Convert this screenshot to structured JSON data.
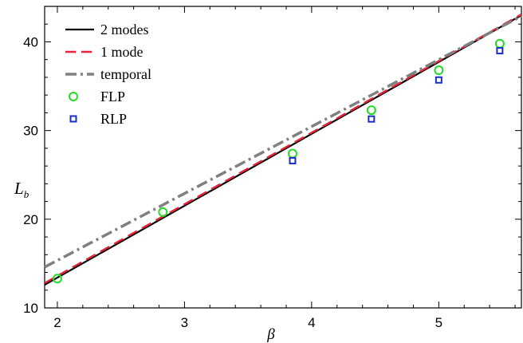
{
  "chart_data": {
    "type": "line",
    "title": "",
    "xlabel": "β",
    "ylabel": {
      "main": "L",
      "sub": "b"
    },
    "xlim": [
      1.9,
      5.65
    ],
    "ylim": [
      10,
      44
    ],
    "xticks": [
      2,
      3,
      4,
      5
    ],
    "yticks": [
      10,
      20,
      30,
      40
    ],
    "grid": false,
    "legend_position": "top-left",
    "series": [
      {
        "name": "2 modes",
        "kind": "line",
        "style": "solid",
        "color": "#000000",
        "x": [
          1.9,
          5.65
        ],
        "y": [
          12.6,
          43.0
        ]
      },
      {
        "name": "1 mode",
        "kind": "line",
        "style": "dashed",
        "color": "#e8243c",
        "x": [
          1.9,
          5.65
        ],
        "y": [
          12.8,
          43.1
        ]
      },
      {
        "name": "temporal",
        "kind": "line",
        "style": "dashdot",
        "color": "#808080",
        "x": [
          1.9,
          5.65
        ],
        "y": [
          14.6,
          42.9
        ]
      },
      {
        "name": "FLP",
        "kind": "points",
        "marker": "circle",
        "color": "#22dd22",
        "x": [
          2.0,
          2.83,
          3.85,
          4.47,
          5.0,
          5.48
        ],
        "y": [
          13.3,
          20.8,
          27.4,
          32.3,
          36.8,
          39.8
        ]
      },
      {
        "name": "RLP",
        "kind": "points",
        "marker": "square",
        "color": "#1a2fc8",
        "x": [
          3.85,
          4.47,
          5.0,
          5.48
        ],
        "y": [
          26.6,
          31.3,
          35.7,
          39.0
        ]
      }
    ]
  }
}
